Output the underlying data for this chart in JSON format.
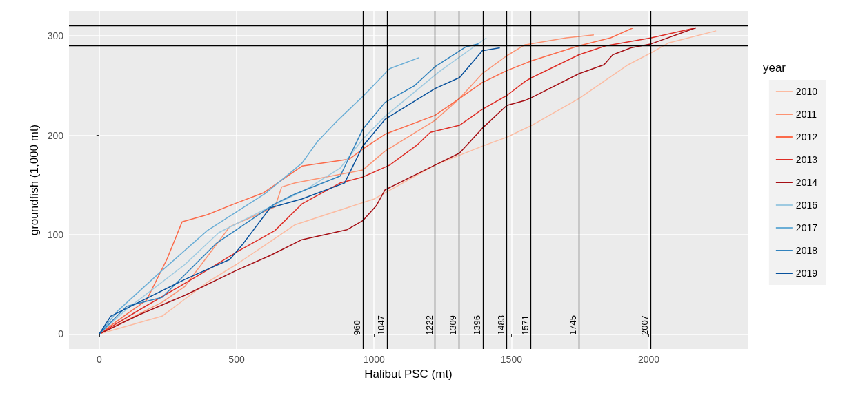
{
  "chart_data": {
    "type": "line",
    "xlabel": "Halibut PSC (mt)",
    "ylabel": "groundfish (1,000 mt)",
    "legend_title": "year",
    "legend": "right",
    "grid": true,
    "marker": "none",
    "line_style": "solid",
    "xlim": [
      -110,
      2360
    ],
    "ylim": [
      -15,
      325
    ],
    "xticks": [
      0,
      500,
      1000,
      1500,
      2000
    ],
    "yticks": [
      0,
      100,
      200,
      300
    ],
    "ref_lines": [
      {
        "axis": "y",
        "value": 310,
        "label": null,
        "color": "#000000"
      },
      {
        "axis": "y",
        "value": 290,
        "label": null,
        "color": "#000000"
      },
      {
        "axis": "x",
        "value": 960,
        "label": "960",
        "color": "#000000"
      },
      {
        "axis": "x",
        "value": 1047,
        "label": "1047",
        "color": "#000000"
      },
      {
        "axis": "x",
        "value": 1222,
        "label": "1222",
        "color": "#000000"
      },
      {
        "axis": "x",
        "value": 1309,
        "label": "1309",
        "color": "#000000"
      },
      {
        "axis": "x",
        "value": 1396,
        "label": "1396",
        "color": "#000000"
      },
      {
        "axis": "x",
        "value": 1483,
        "label": "1483",
        "color": "#000000"
      },
      {
        "axis": "x",
        "value": 1571,
        "label": "1571",
        "color": "#000000"
      },
      {
        "axis": "x",
        "value": 1745,
        "label": "1745",
        "color": "#000000"
      },
      {
        "axis": "x",
        "value": 2007,
        "label": "2007",
        "color": "#000000"
      }
    ],
    "series": [
      {
        "name": "2010",
        "color": "#fcbba1",
        "x": [
          0,
          229,
          393,
          499,
          622,
          713,
          1001,
          1222,
          1394,
          1483,
          1574,
          1746,
          1925,
          2009,
          2073,
          2245
        ],
        "values": [
          0,
          18,
          52,
          70,
          93,
          110,
          136,
          170,
          189,
          198,
          210,
          237,
          271,
          283,
          293,
          305
        ]
      },
      {
        "name": "2011",
        "color": "#fc9272",
        "x": [
          0,
          229,
          312,
          475,
          640,
          664,
          713,
          959,
          1040,
          1222,
          1311,
          1394,
          1483,
          1549,
          1700,
          1800
        ],
        "values": [
          0,
          32,
          48,
          108,
          128,
          148,
          152,
          165,
          184,
          215,
          237,
          262,
          280,
          291,
          298,
          301
        ]
      },
      {
        "name": "2012",
        "color": "#fb6a4a",
        "x": [
          0,
          100,
          172,
          246,
          302,
          393,
          492,
          597,
          738,
          910,
          959,
          1040,
          1222,
          1311,
          1394,
          1483,
          1574,
          1746,
          1861,
          1943
        ],
        "values": [
          0,
          20,
          34,
          75,
          113,
          120,
          131,
          142,
          169,
          176,
          186,
          201,
          220,
          237,
          253,
          265,
          275,
          290,
          298,
          308
        ]
      },
      {
        "name": "2013",
        "color": "#de2d26",
        "x": [
          0,
          150,
          361,
          509,
          639,
          738,
          877,
          959,
          1057,
          1156,
          1205,
          1311,
          1394,
          1483,
          1549,
          1574,
          1746,
          1844,
          2009,
          2171
        ],
        "values": [
          0,
          25,
          59,
          84,
          104,
          131,
          152,
          158,
          170,
          190,
          203,
          210,
          226,
          240,
          254,
          258,
          281,
          290,
          298,
          308
        ]
      },
      {
        "name": "2014",
        "color": "#a50f15",
        "x": [
          0,
          150,
          312,
          499,
          622,
          738,
          902,
          959,
          1008,
          1040,
          1156,
          1222,
          1311,
          1394,
          1483,
          1549,
          1574,
          1746,
          1837,
          1869,
          1935,
          2009,
          2171
        ],
        "values": [
          0,
          20,
          39,
          64,
          79,
          95,
          105,
          114,
          129,
          145,
          161,
          170,
          182,
          207,
          230,
          235,
          238,
          262,
          271,
          281,
          288,
          292,
          308
        ]
      },
      {
        "name": "2016",
        "color": "#9ecae1",
        "x": [
          0,
          100,
          312,
          435,
          600,
          750,
          877,
          959,
          1040,
          1237,
          1409
        ],
        "values": [
          0,
          25,
          70,
          102,
          125,
          145,
          167,
          196,
          219,
          264,
          298
        ]
      },
      {
        "name": "2017",
        "color": "#6baed6",
        "x": [
          0,
          66,
          229,
          393,
          607,
          738,
          795,
          868,
          959,
          1057,
          1163
        ],
        "values": [
          0,
          23,
          64,
          104,
          142,
          172,
          194,
          215,
          239,
          267,
          278
        ]
      },
      {
        "name": "2018",
        "color": "#3182bd",
        "x": [
          0,
          100,
          229,
          425,
          639,
          713,
          877,
          959,
          1040,
          1148,
          1222,
          1335,
          1380
        ],
        "values": [
          0,
          28,
          37,
          91,
          131,
          141,
          159,
          206,
          233,
          250,
          269,
          289,
          292
        ]
      },
      {
        "name": "2019",
        "color": "#08519c",
        "x": [
          0,
          42,
          312,
          475,
          524,
          622,
          738,
          893,
          959,
          1040,
          1222,
          1311,
          1394,
          1458
        ],
        "values": [
          0,
          18,
          55,
          75,
          91,
          127,
          136,
          152,
          189,
          216,
          247,
          258,
          285,
          288
        ]
      }
    ]
  }
}
